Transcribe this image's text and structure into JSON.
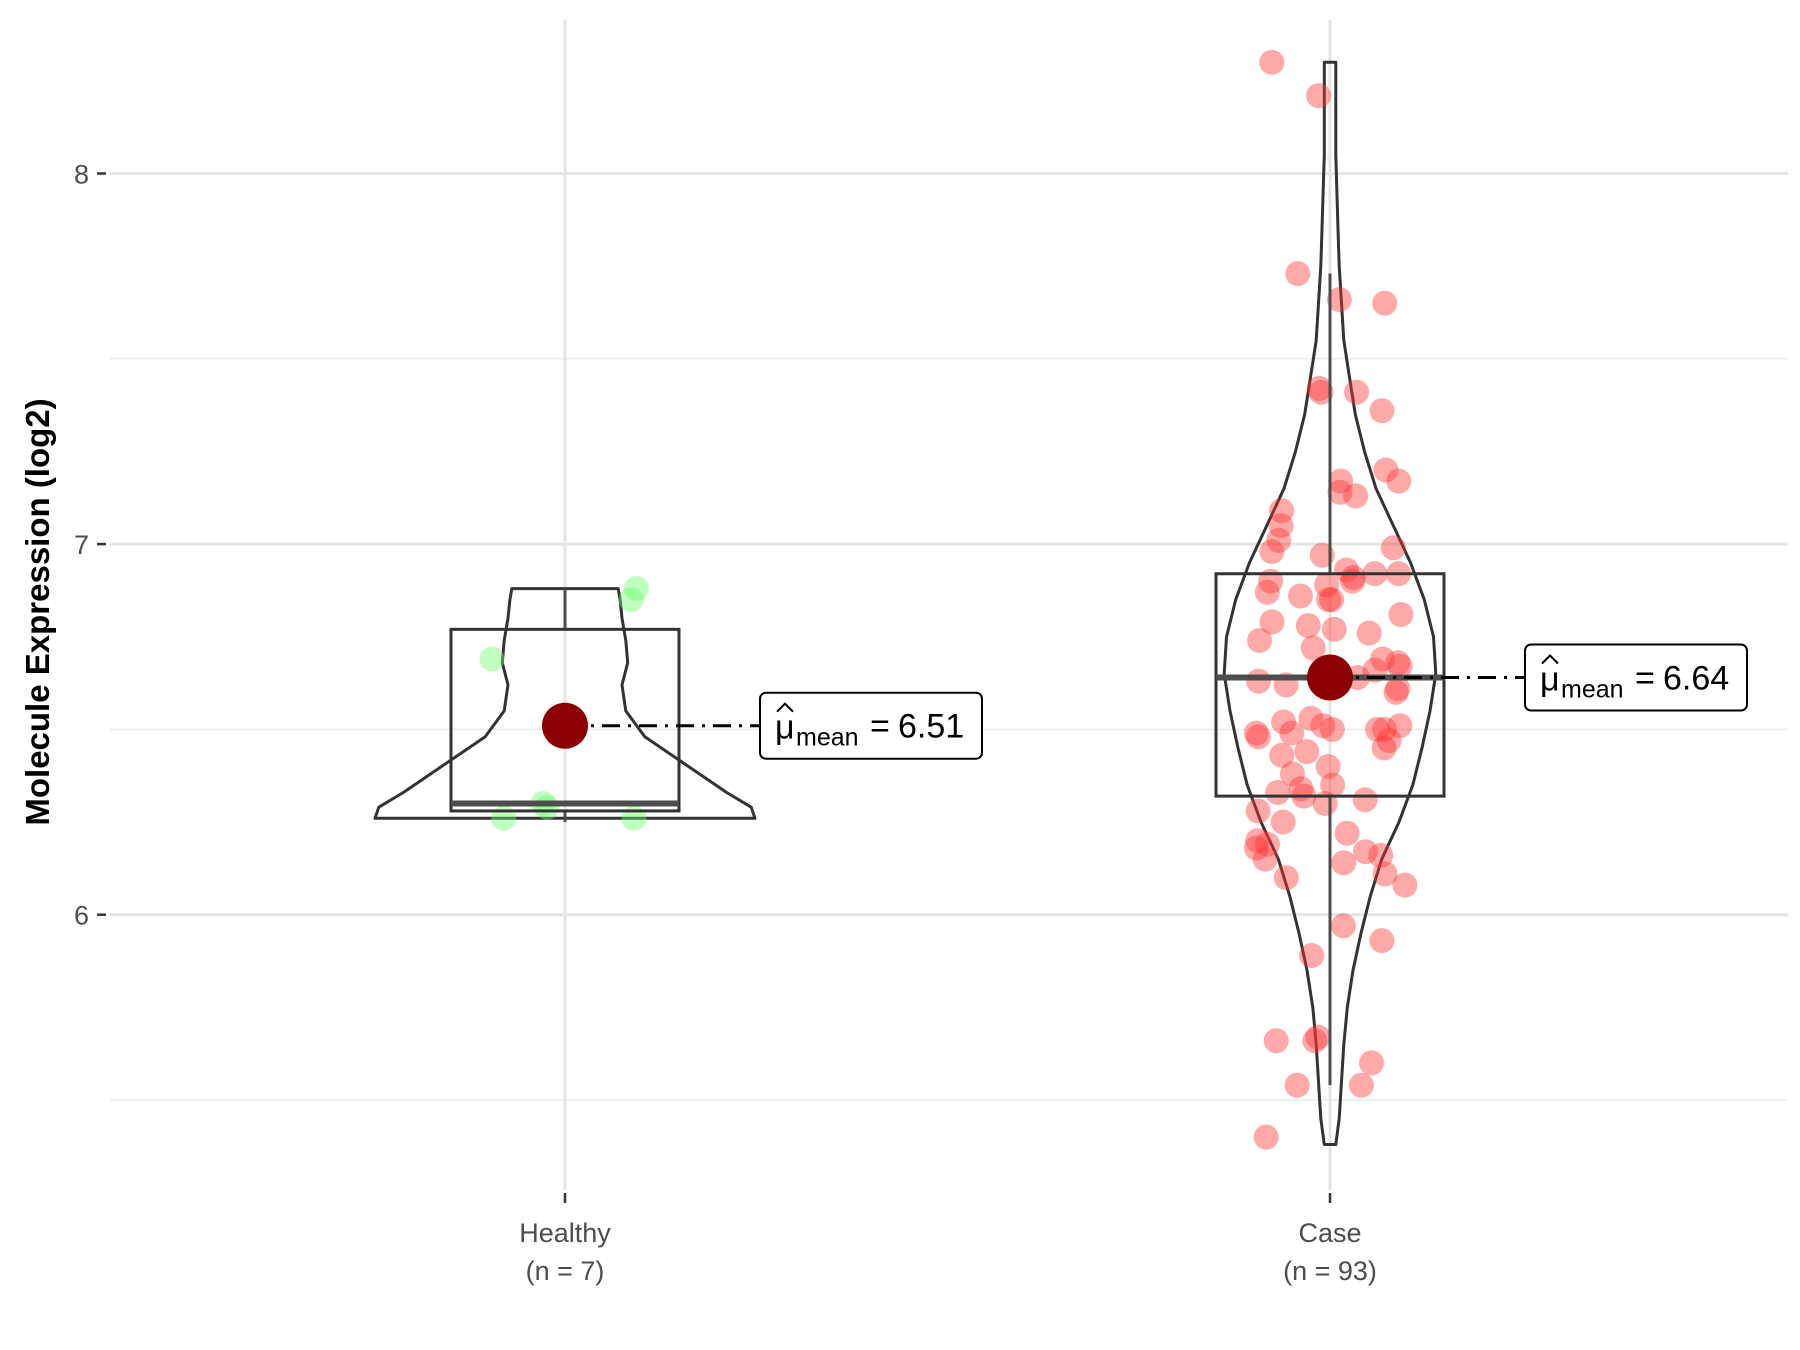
{
  "chart_data": {
    "type": "violin",
    "title": "",
    "xlabel": "",
    "ylabel": "Molecule Expression (log2)",
    "ylim": [
      5.25,
      8.45
    ],
    "yticks": [
      6,
      7,
      8
    ],
    "grid": true,
    "mean_symbol": "μ",
    "mean_subscript": "mean",
    "groups": [
      {
        "label": "Healthy",
        "n_label": "(n = 7)",
        "color": "#66ff66",
        "mean": 6.51,
        "mean_label": "6.51",
        "box": {
          "q1": 6.28,
          "median": 6.3,
          "q3": 6.77,
          "whisker_low": 6.25,
          "whisker_high": 6.88
        },
        "violin": {
          "ymin": 6.26,
          "ymax": 6.88,
          "profile": [
            [
              6.26,
              1.0
            ],
            [
              6.29,
              0.98
            ],
            [
              6.33,
              0.85
            ],
            [
              6.4,
              0.65
            ],
            [
              6.48,
              0.42
            ],
            [
              6.55,
              0.32
            ],
            [
              6.62,
              0.3
            ],
            [
              6.68,
              0.33
            ],
            [
              6.74,
              0.32
            ],
            [
              6.8,
              0.3
            ],
            [
              6.85,
              0.29
            ],
            [
              6.88,
              0.28
            ]
          ]
        },
        "points": [
          6.85,
          6.88,
          6.69,
          6.29,
          6.26,
          6.26,
          6.3
        ]
      },
      {
        "label": "Case",
        "n_label": "(n = 93)",
        "color": "#ff3333",
        "mean": 6.64,
        "mean_label": "6.64",
        "box": {
          "q1": 6.32,
          "median": 6.64,
          "q3": 6.92,
          "whisker_low": 5.54,
          "whisker_high": 7.73
        },
        "violin": {
          "ymin": 5.38,
          "ymax": 8.3,
          "profile": [
            [
              5.38,
              0.05
            ],
            [
              5.45,
              0.08
            ],
            [
              5.55,
              0.1
            ],
            [
              5.65,
              0.12
            ],
            [
              5.75,
              0.15
            ],
            [
              5.85,
              0.2
            ],
            [
              5.95,
              0.27
            ],
            [
              6.05,
              0.35
            ],
            [
              6.15,
              0.45
            ],
            [
              6.25,
              0.6
            ],
            [
              6.35,
              0.72
            ],
            [
              6.45,
              0.8
            ],
            [
              6.55,
              0.87
            ],
            [
              6.65,
              0.92
            ],
            [
              6.75,
              0.9
            ],
            [
              6.85,
              0.82
            ],
            [
              6.95,
              0.7
            ],
            [
              7.05,
              0.55
            ],
            [
              7.15,
              0.4
            ],
            [
              7.25,
              0.3
            ],
            [
              7.35,
              0.22
            ],
            [
              7.45,
              0.17
            ],
            [
              7.55,
              0.12
            ],
            [
              7.65,
              0.1
            ],
            [
              7.75,
              0.08
            ],
            [
              7.85,
              0.07
            ],
            [
              7.95,
              0.06
            ],
            [
              8.05,
              0.05
            ],
            [
              8.15,
              0.05
            ],
            [
              8.25,
              0.05
            ],
            [
              8.3,
              0.05
            ]
          ]
        },
        "points": [
          8.3,
          8.21,
          7.73,
          7.66,
          7.65,
          7.42,
          7.41,
          7.41,
          7.36,
          7.2,
          7.17,
          7.17,
          7.14,
          7.13,
          7.09,
          7.05,
          7.01,
          6.99,
          6.98,
          6.97,
          6.93,
          6.92,
          6.92,
          6.91,
          6.9,
          6.9,
          6.89,
          6.87,
          6.86,
          6.85,
          6.85,
          6.81,
          6.79,
          6.78,
          6.77,
          6.76,
          6.74,
          6.72,
          6.69,
          6.68,
          6.67,
          6.66,
          6.65,
          6.64,
          6.63,
          6.62,
          6.61,
          6.6,
          6.53,
          6.52,
          6.51,
          6.51,
          6.5,
          6.5,
          6.5,
          6.49,
          6.49,
          6.48,
          6.47,
          6.45,
          6.44,
          6.43,
          6.4,
          6.38,
          6.35,
          6.34,
          6.33,
          6.32,
          6.31,
          6.3,
          6.28,
          6.25,
          6.22,
          6.2,
          6.19,
          6.18,
          6.17,
          6.16,
          6.15,
          6.14,
          6.11,
          6.1,
          6.08,
          5.97,
          5.93,
          5.89,
          5.67,
          5.66,
          5.66,
          5.6,
          5.54,
          5.54,
          5.4
        ]
      }
    ]
  }
}
